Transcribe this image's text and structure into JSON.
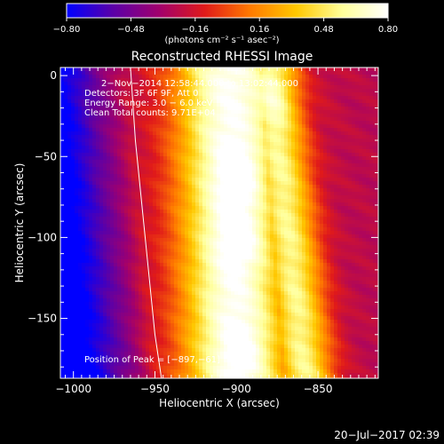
{
  "chart_data": {
    "type": "heatmap",
    "title": "Reconstructed RHESSI Image",
    "xlabel": "Heliocentric X (arcsec)",
    "ylabel": "Heliocentric Y (arcsec)",
    "xlim": [
      -1008,
      -813
    ],
    "ylim": [
      -187,
      5
    ],
    "x_ticks": [
      -1000,
      -950,
      -900,
      -850
    ],
    "x_tick_labels": [
      "−1000",
      "−950",
      "−900",
      "−850"
    ],
    "y_ticks": [
      0,
      -50,
      -100,
      -150
    ],
    "y_tick_labels": [
      "0",
      "−50",
      "−100",
      "−150"
    ],
    "colorbar": {
      "range": [
        -0.8,
        0.8
      ],
      "ticks": [
        -0.8,
        -0.48,
        -0.16,
        0.16,
        0.48,
        0.8
      ],
      "tick_labels": [
        "−0.80",
        "−0.48",
        "−0.16",
        "0.16",
        "0.48",
        "0.80"
      ],
      "units": "(photons cm⁻² s⁻¹ asec⁻²)",
      "colormap": [
        "#0000ff",
        "#5a00a8",
        "#a0006e",
        "#e01a1a",
        "#ff7a00",
        "#ffc800",
        "#ffff9a",
        "#ffffff"
      ]
    },
    "annotations": [
      "2−Nov−2014 12:58:44.000 to 13:02:44.000",
      "Detectors: 3F 6F 9F, Att 0",
      "Energy Range: 3.0 − 6.0 keV",
      "Clean     Total counts: 9.71E+04"
    ],
    "peak_label": "Position of Peak = [−897,−61]",
    "peak_position": [
      -897,
      -61
    ],
    "limb_curve": {
      "x": [
        -965,
        -962,
        -958,
        -954,
        -950,
        -946
      ],
      "y": [
        5,
        -40,
        -80,
        -120,
        -160,
        -187
      ]
    },
    "field": {
      "description_ridges": [
        {
          "y": [
            5,
            -187
          ],
          "x": [
            -905,
            -900
          ],
          "amp": 0.78,
          "width": 34
        },
        {
          "y": [
            5,
            -187
          ],
          "x": [
            -880,
            -858
          ],
          "amp": 0.55,
          "width": 18
        }
      ],
      "blobs": [
        {
          "x": -897,
          "y": -61,
          "amp": 0.2
        },
        {
          "x": -897,
          "y": -100,
          "amp": 0.16
        },
        {
          "x": -880,
          "y": -15,
          "amp": 0.14
        },
        {
          "x": -895,
          "y": -170,
          "amp": 0.12
        }
      ],
      "background": -0.25
    }
  },
  "footer": {
    "timestamp": "20−Jul−2017 02:39"
  }
}
